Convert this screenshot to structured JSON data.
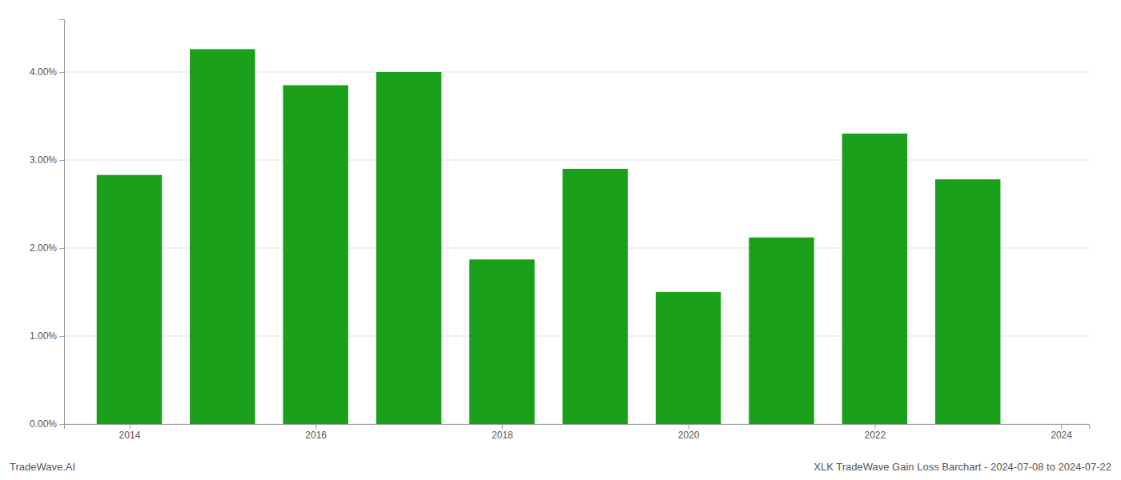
{
  "chart_data": {
    "type": "bar",
    "x": [
      2014,
      2015,
      2016,
      2017,
      2018,
      2019,
      2020,
      2021,
      2022,
      2023
    ],
    "values": [
      0.0283,
      0.0426,
      0.0385,
      0.04,
      0.0187,
      0.029,
      0.015,
      0.0212,
      0.033,
      0.0278
    ],
    "color": "#1aa01a",
    "xlim": [
      2013.3,
      2024.3
    ],
    "xticks": [
      2014,
      2016,
      2018,
      2020,
      2022,
      2024
    ],
    "ylim": [
      0.0,
      0.046
    ],
    "yticks": [
      {
        "value": 0.0,
        "label": "0.00%"
      },
      {
        "value": 0.01,
        "label": "1.00%"
      },
      {
        "value": 0.02,
        "label": "2.00%"
      },
      {
        "value": 0.03,
        "label": "3.00%"
      },
      {
        "value": 0.04,
        "label": "4.00%"
      }
    ],
    "grid": true,
    "annotations": [
      "TradeWave.AI",
      "XLK TradeWave Gain Loss Barchart - 2024-07-08 to 2024-07-22"
    ]
  }
}
